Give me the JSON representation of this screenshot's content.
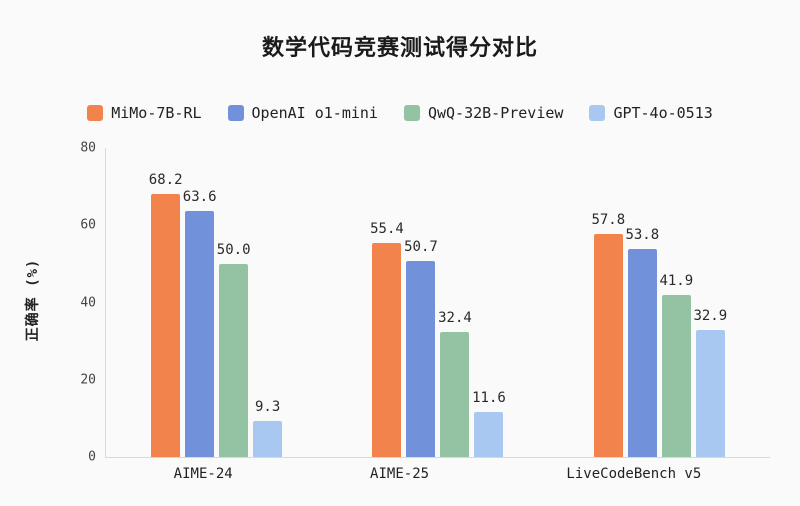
{
  "page": {
    "title": "数学代码竞赛测试得分对比"
  },
  "chart_data": {
    "type": "bar",
    "title": "数学代码竞赛测试得分对比",
    "xlabel": "",
    "ylabel": "正确率 (%)",
    "ylim": [
      0,
      80
    ],
    "ytick_step": 20,
    "grid": false,
    "legend_position": "top",
    "background": "#FAFAFA",
    "categories": [
      "AIME-24",
      "AIME-25",
      "LiveCodeBench v5"
    ],
    "series": [
      {
        "name": "MiMo-7B-RL",
        "color": "#F2834C",
        "values": [
          68.2,
          55.4,
          57.8
        ]
      },
      {
        "name": "OpenAI o1-mini",
        "color": "#7291DB",
        "values": [
          63.6,
          50.7,
          53.8
        ]
      },
      {
        "name": "QwQ-32B-Preview",
        "color": "#94C3A4",
        "values": [
          50.0,
          32.4,
          41.9
        ]
      },
      {
        "name": "GPT-4o-0513",
        "color": "#A9C8F1",
        "values": [
          9.3,
          11.6,
          32.9
        ]
      }
    ]
  }
}
